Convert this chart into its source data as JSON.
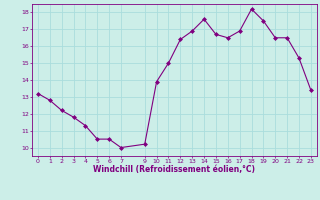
{
  "all_x": [
    0,
    1,
    2,
    3,
    4,
    5,
    6,
    7,
    9,
    10,
    11,
    12,
    13,
    14,
    15,
    16,
    17,
    18,
    19,
    20,
    21,
    22,
    23
  ],
  "all_y": [
    13.2,
    12.8,
    12.2,
    11.8,
    11.3,
    10.5,
    10.5,
    10.0,
    10.2,
    13.9,
    15.0,
    16.4,
    16.9,
    17.6,
    16.7,
    16.5,
    16.9,
    18.2,
    17.5,
    16.5,
    16.5,
    15.3,
    13.4
  ],
  "line_color": "#800080",
  "marker_color": "#800080",
  "bg_color": "#cceee8",
  "grid_color": "#aadddd",
  "xlabel": "Windchill (Refroidissement éolien,°C)",
  "xlabel_color": "#800080",
  "tick_color": "#800080",
  "ylim": [
    9.5,
    18.5
  ],
  "xlim": [
    -0.5,
    23.5
  ],
  "yticks": [
    10,
    11,
    12,
    13,
    14,
    15,
    16,
    17,
    18
  ],
  "xticks": [
    0,
    1,
    2,
    3,
    4,
    5,
    6,
    7,
    9,
    10,
    11,
    12,
    13,
    14,
    15,
    16,
    17,
    18,
    19,
    20,
    21,
    22,
    23
  ]
}
